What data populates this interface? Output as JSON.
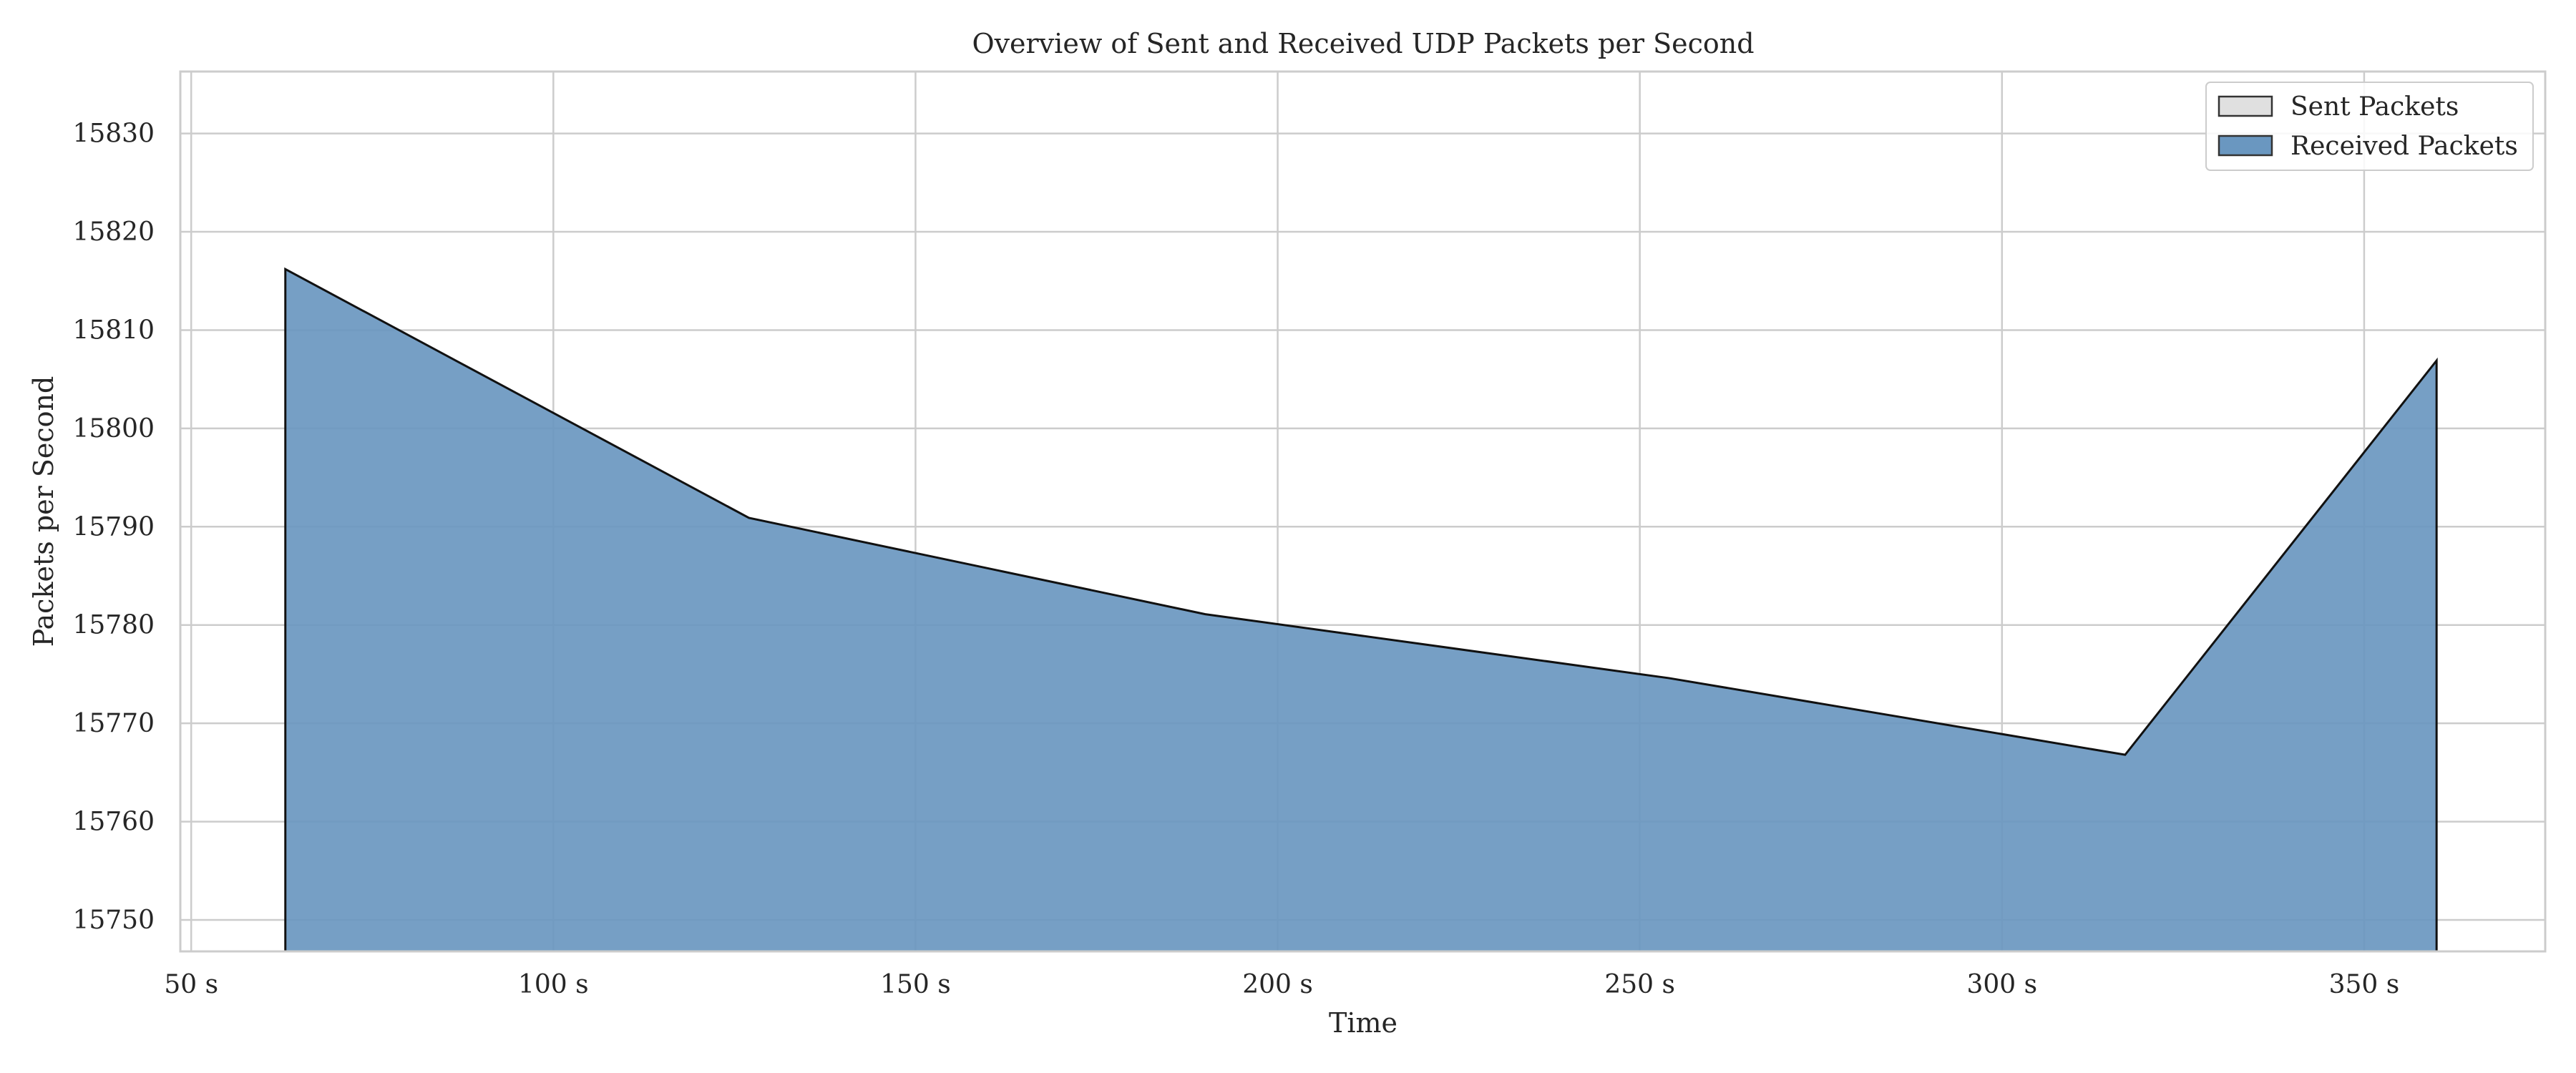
{
  "chart_data": {
    "type": "area",
    "title": "Overview of Sent and Received UDP Packets per Second",
    "xlabel": "Time",
    "ylabel": "Packets per Second",
    "x_tick_values": [
      50,
      100,
      150,
      200,
      250,
      300,
      350
    ],
    "x_tick_labels": [
      "50 s",
      "100 s",
      "150 s",
      "200 s",
      "250 s",
      "300 s",
      "350 s"
    ],
    "y_tick_values": [
      15750,
      15760,
      15770,
      15780,
      15790,
      15800,
      15810,
      15820,
      15830
    ],
    "y_tick_labels": [
      "15750",
      "15760",
      "15770",
      "15780",
      "15790",
      "15800",
      "15810",
      "15820",
      "15830"
    ],
    "xlim": [
      48.5,
      375
    ],
    "ylim": [
      15746.8,
      15836.3
    ],
    "grid": true,
    "legend_position": "top-right",
    "series": [
      {
        "name": "Sent Packets",
        "fill_color": "#e0e0e0",
        "x": [],
        "y": []
      },
      {
        "name": "Received Packets",
        "fill_color": "#6a97c0",
        "x": [
          63,
          127,
          190,
          254,
          317,
          360
        ],
        "y": [
          15816.2,
          15790.9,
          15781.1,
          15774.6,
          15766.8,
          15806.9
        ]
      }
    ]
  }
}
